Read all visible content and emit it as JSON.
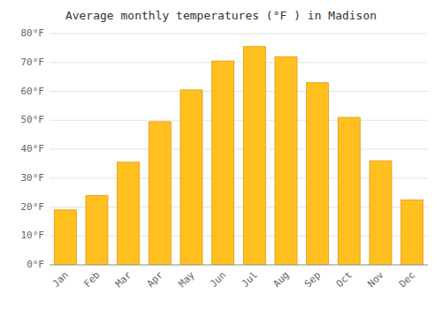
{
  "chart_data": {
    "type": "bar",
    "title": "Average monthly temperatures (°F ) in Madison",
    "categories": [
      "Jan",
      "Feb",
      "Mar",
      "Apr",
      "May",
      "Jun",
      "Jul",
      "Aug",
      "Sep",
      "Oct",
      "Nov",
      "Dec"
    ],
    "values": [
      19,
      24,
      35.5,
      49.5,
      60.5,
      70.5,
      75.5,
      72,
      63,
      51,
      36,
      22.5
    ],
    "color": "#FFC020",
    "ylim": [
      0,
      80
    ],
    "yticks": [
      {
        "value": 0,
        "label": "0°F"
      },
      {
        "value": 10,
        "label": "10°F"
      },
      {
        "value": 20,
        "label": "20°F"
      },
      {
        "value": 30,
        "label": "30°F"
      },
      {
        "value": 40,
        "label": "40°F"
      },
      {
        "value": 50,
        "label": "50°F"
      },
      {
        "value": 60,
        "label": "60°F"
      },
      {
        "value": 70,
        "label": "70°F"
      },
      {
        "value": 80,
        "label": "80°F"
      }
    ],
    "grid": true
  }
}
